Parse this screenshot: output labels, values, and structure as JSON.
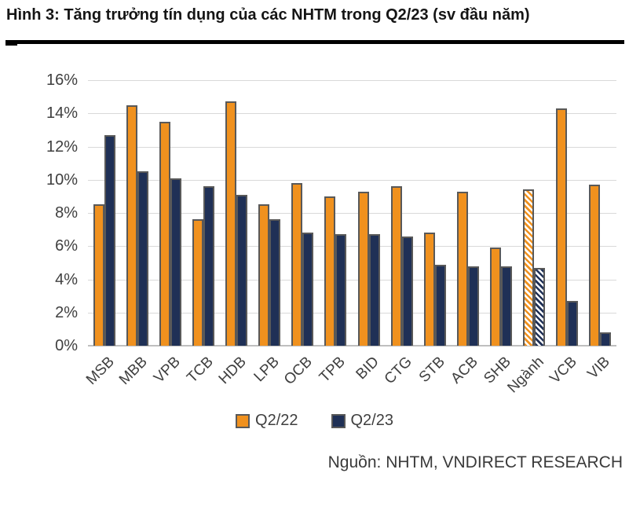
{
  "figure": {
    "title": "Hình 3: Tăng trưởng tín dụng của các NHTM trong Q2/23 (sv đầu năm)",
    "source": "Nguồn: NHTM, VNDIRECT RESEARCH"
  },
  "chart_data": {
    "type": "bar",
    "title": "Tăng trưởng tín dụng của các NHTM trong Q2/23 (sv đầu năm)",
    "categories": [
      "MSB",
      "MBB",
      "VPB",
      "TCB",
      "HDB",
      "LPB",
      "OCB",
      "TPB",
      "BID",
      "CTG",
      "STB",
      "ACB",
      "SHB",
      "Ngành",
      "VCB",
      "VIB"
    ],
    "series": [
      {
        "name": "Q2/22",
        "color": "#F0911E",
        "values": [
          8.5,
          14.5,
          13.5,
          7.6,
          14.7,
          8.5,
          9.8,
          9.0,
          9.3,
          9.6,
          6.8,
          9.3,
          5.9,
          9.4,
          14.3,
          9.7
        ]
      },
      {
        "name": "Q2/23",
        "color": "#1F3056",
        "values": [
          12.7,
          10.5,
          10.1,
          9.6,
          9.1,
          7.6,
          6.8,
          6.7,
          6.7,
          6.6,
          4.9,
          4.8,
          4.8,
          4.7,
          2.7,
          0.8
        ]
      }
    ],
    "hatched_categories": [
      "Ngành"
    ],
    "yticks": [
      "16%",
      "14%",
      "12%",
      "10%",
      "8%",
      "6%",
      "4%",
      "2%",
      "0%"
    ],
    "ylim": [
      0,
      16
    ],
    "grid": true,
    "legend_position": "bottom",
    "colors": {
      "bar_border": "#595959",
      "gridline": "#d9d9d9",
      "axis_line": "#bfbfbf",
      "tick_text": "#3f3f3f"
    }
  }
}
